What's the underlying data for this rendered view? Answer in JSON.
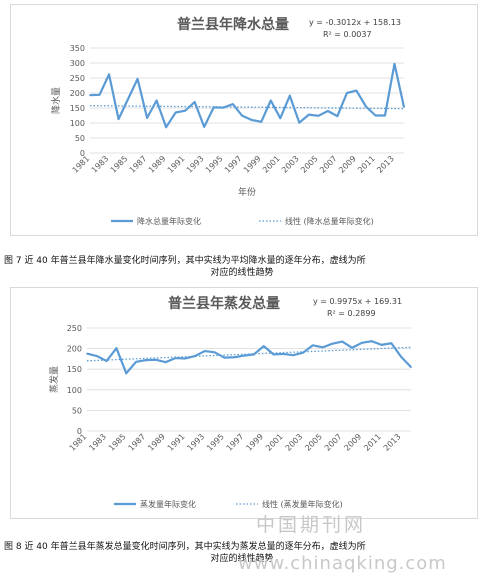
{
  "chart_data": [
    {
      "type": "line",
      "title": "普兰县年降水总量",
      "xlabel": "年份",
      "ylabel": "降水量",
      "ylim": [
        0,
        350
      ],
      "yticks": [
        "0",
        "50",
        "100",
        "150",
        "200",
        "250",
        "300",
        "350"
      ],
      "grid": true,
      "legend_position": "bottom",
      "trendline_equation": "y = -0.3012x + 158.13",
      "r_squared": "R² = 0.0037",
      "trend": {
        "slope": -0.3012,
        "intercept": 158.13
      },
      "x": [
        1981,
        1982,
        1983,
        1984,
        1985,
        1986,
        1987,
        1988,
        1989,
        1990,
        1991,
        1992,
        1993,
        1994,
        1995,
        1996,
        1997,
        1998,
        1999,
        2000,
        2001,
        2002,
        2003,
        2004,
        2005,
        2006,
        2007,
        2008,
        2009,
        2010,
        2011,
        2012,
        2013,
        2014
      ],
      "xticks": [
        "1981",
        "1983",
        "1985",
        "1987",
        "1989",
        "1991",
        "1993",
        "1995",
        "1997",
        "1999",
        "2001",
        "2003",
        "2005",
        "2007",
        "2009",
        "2011",
        "2013"
      ],
      "series": [
        {
          "name": "降水总量年际变化",
          "style": "solid",
          "color": "#5b9bd5",
          "values": [
            193,
            194,
            262,
            113,
            180,
            247,
            117,
            175,
            86,
            135,
            141,
            170,
            87,
            152,
            151,
            163,
            124,
            110,
            104,
            175,
            116,
            191,
            101,
            128,
            124,
            140,
            123,
            200,
            208,
            155,
            125,
            125,
            297,
            153
          ]
        },
        {
          "name": "线性 (降水总量年际变化)",
          "style": "dotted",
          "color": "#5b9bd5"
        }
      ]
    },
    {
      "type": "line",
      "title": "普兰县年蒸发总量",
      "xlabel": "",
      "ylabel": "蒸发量",
      "ylim": [
        0,
        250
      ],
      "yticks": [
        "0",
        "50",
        "100",
        "150",
        "200",
        "250"
      ],
      "grid": true,
      "legend_position": "bottom",
      "trendline_equation": "y = 0.9975x + 169.31",
      "r_squared": "R² = 0.2899",
      "trend": {
        "slope": 0.9975,
        "intercept": 169.31
      },
      "x": [
        1981,
        1982,
        1983,
        1984,
        1985,
        1986,
        1987,
        1988,
        1989,
        1990,
        1991,
        1992,
        1993,
        1994,
        1995,
        1996,
        1997,
        1998,
        1999,
        2000,
        2001,
        2002,
        2003,
        2004,
        2005,
        2006,
        2007,
        2008,
        2009,
        2010,
        2011,
        2012,
        2013,
        2014
      ],
      "xticks": [
        "1981",
        "1983",
        "1985",
        "1987",
        "1989",
        "1991",
        "1993",
        "1995",
        "1997",
        "1999",
        "2001",
        "2003",
        "2005",
        "2007",
        "2009",
        "2011",
        "2013"
      ],
      "series": [
        {
          "name": "蒸发量年际变化",
          "style": "solid",
          "color": "#5b9bd5",
          "values": [
            188,
            182,
            170,
            201,
            140,
            168,
            172,
            173,
            167,
            177,
            176,
            182,
            194,
            191,
            178,
            179,
            183,
            186,
            206,
            186,
            187,
            184,
            190,
            208,
            203,
            212,
            217,
            202,
            214,
            218,
            209,
            213,
            180,
            155
          ]
        },
        {
          "name": "线性 (蒸发量年际变化)",
          "style": "dotted",
          "color": "#5b9bd5"
        }
      ]
    }
  ],
  "captions": {
    "fig7_line1": "图 7  近 40 年普兰县年降水量变化时间序列，其中实线为平均降水量的逐年分布，虚线为所",
    "fig7_line2": "对应的线性趋势",
    "fig8_line1": "图 8  近 40 年普兰县年蒸发总量变化时间序列，其中实线为蒸发总量的逐年分布，虚线为所",
    "fig8_line2": "对应的线性趋势"
  },
  "watermark": {
    "line1": "中国期刊网",
    "line2": "www.chinaqking.com"
  },
  "colors": {
    "series": "#5b9bd5",
    "grid": "#d9d9d9",
    "axis_text": "#595959",
    "title": "#595959"
  }
}
